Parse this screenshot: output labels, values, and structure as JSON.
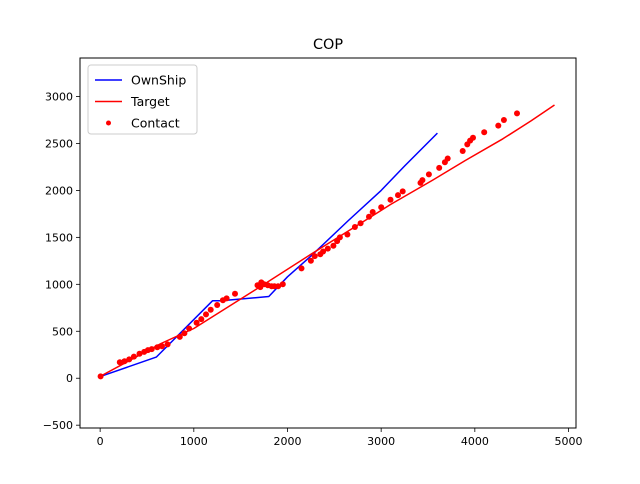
{
  "chart_data": {
    "type": "line",
    "title": "COP",
    "xlabel": "",
    "ylabel": "",
    "xlim": [
      -215,
      5080
    ],
    "ylim": [
      -530,
      3410
    ],
    "xticks": [
      0,
      1000,
      2000,
      3000,
      4000,
      5000
    ],
    "yticks": [
      -500,
      0,
      500,
      1000,
      1500,
      2000,
      2500,
      3000
    ],
    "grid": false,
    "legend_position": "upper-left",
    "series": [
      {
        "name": "OwnShip",
        "kind": "line",
        "color": "#0000ff",
        "x": [
          20,
          600,
          1200,
          1290,
          1800,
          2000,
          2250,
          2650,
          3000,
          3250,
          3600
        ],
        "y": [
          25,
          225,
          825,
          825,
          870,
          1080,
          1300,
          1680,
          2000,
          2260,
          2610
        ]
      },
      {
        "name": "Target",
        "kind": "line",
        "color": "#ff0000",
        "x": [
          20,
          650,
          1000,
          1750,
          2250,
          2700,
          3100,
          3550,
          3900,
          4300,
          4600,
          4850
        ],
        "y": [
          30,
          370,
          530,
          1000,
          1320,
          1600,
          1850,
          2110,
          2320,
          2550,
          2740,
          2910
        ]
      },
      {
        "name": "Contact",
        "kind": "scatter",
        "color": "#ff0000",
        "x": [
          5,
          210,
          260,
          310,
          360,
          420,
          470,
          510,
          550,
          610,
          660,
          720,
          850,
          900,
          950,
          1030,
          1080,
          1130,
          1180,
          1250,
          1310,
          1350,
          1440,
          1680,
          1710,
          1720,
          1750,
          1790,
          1830,
          1860,
          1900,
          1950,
          2150,
          2250,
          2290,
          2350,
          2380,
          2430,
          2490,
          2530,
          2560,
          2640,
          2720,
          2780,
          2870,
          2910,
          3000,
          3100,
          3180,
          3230,
          3420,
          3440,
          3510,
          3620,
          3680,
          3710,
          3870,
          3920,
          3950,
          3980,
          4100,
          4250,
          4310,
          4450
        ],
        "y": [
          20,
          170,
          180,
          200,
          230,
          260,
          280,
          300,
          310,
          330,
          340,
          360,
          440,
          480,
          530,
          590,
          630,
          680,
          730,
          780,
          830,
          850,
          900,
          990,
          970,
          1020,
          1000,
          990,
          980,
          980,
          980,
          1000,
          1170,
          1250,
          1300,
          1320,
          1350,
          1380,
          1410,
          1460,
          1500,
          1530,
          1610,
          1650,
          1720,
          1770,
          1820,
          1900,
          1950,
          1990,
          2080,
          2110,
          2170,
          2240,
          2300,
          2340,
          2420,
          2490,
          2530,
          2560,
          2620,
          2690,
          2750,
          2820
        ]
      }
    ]
  }
}
